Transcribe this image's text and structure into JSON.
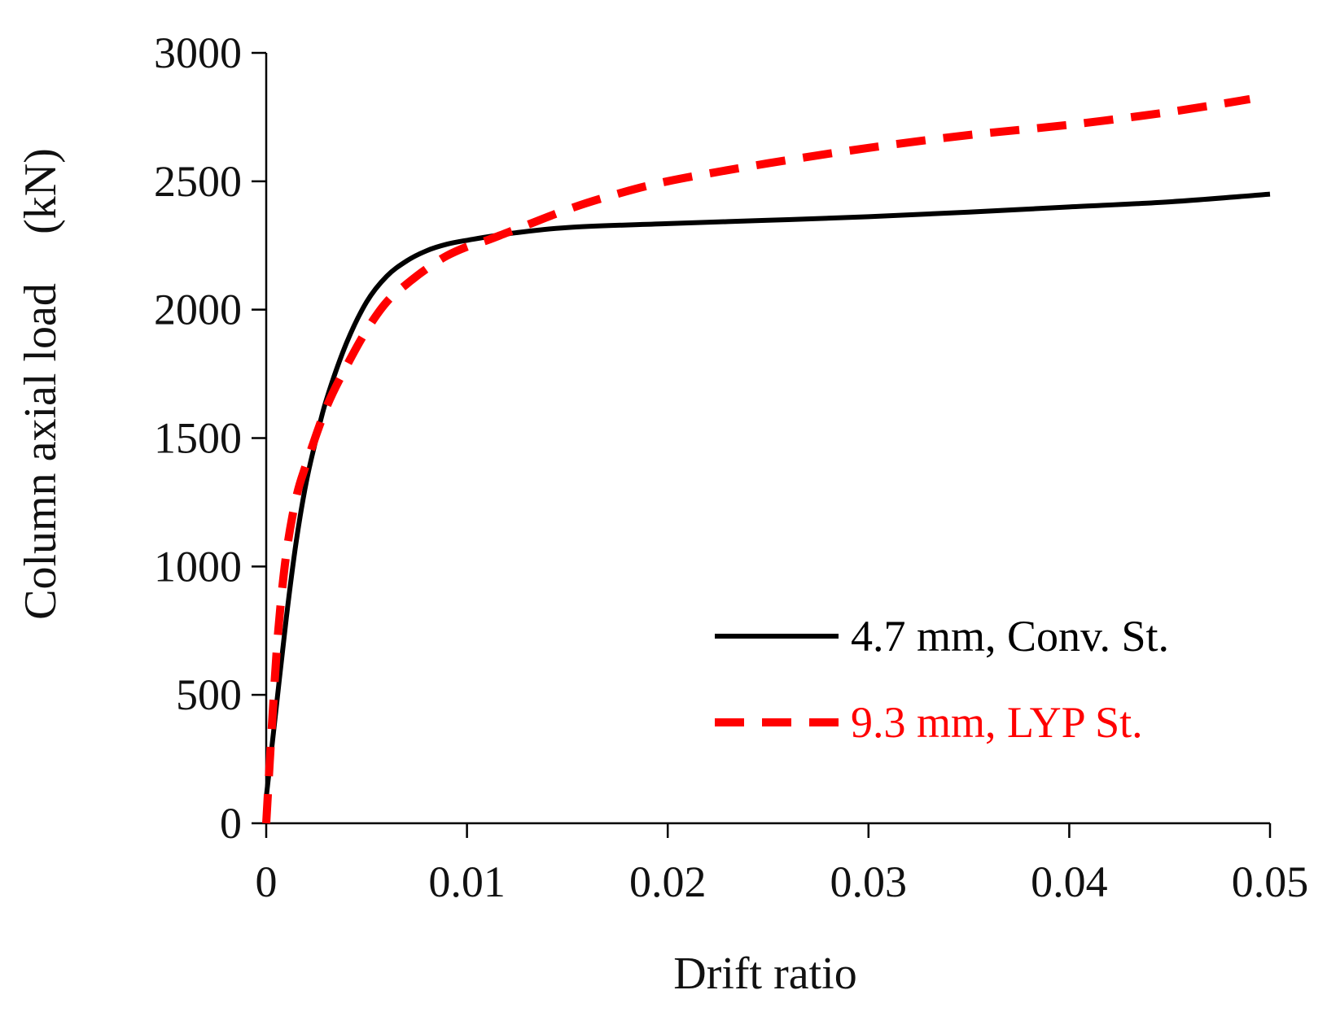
{
  "chart_data": {
    "type": "line",
    "title": "",
    "xlabel": "Drift ratio",
    "ylabel": "Column axial load",
    "ylabel_unit": "(kN)",
    "xlim": [
      0,
      0.05
    ],
    "ylim": [
      0,
      3000
    ],
    "xticks": [
      0,
      0.01,
      0.02,
      0.03,
      0.04,
      0.05
    ],
    "xtick_labels": [
      "0",
      "0.01",
      "0.02",
      "0.03",
      "0.04",
      "0.05"
    ],
    "yticks": [
      0,
      500,
      1000,
      1500,
      2000,
      2500,
      3000
    ],
    "ytick_labels": [
      "0",
      "500",
      "1000",
      "1500",
      "2000",
      "2500",
      "3000"
    ],
    "grid": false,
    "legend_position": "center-right",
    "series": [
      {
        "name": "4.7 mm, Conv. St.",
        "color": "#000000",
        "dash": "solid",
        "x": [
          0,
          0.0005,
          0.001,
          0.0015,
          0.002,
          0.0025,
          0.003,
          0.004,
          0.005,
          0.006,
          0.007,
          0.008,
          0.009,
          0.01,
          0.012,
          0.015,
          0.02,
          0.025,
          0.03,
          0.035,
          0.04,
          0.045,
          0.05
        ],
        "y": [
          100,
          450,
          800,
          1100,
          1330,
          1500,
          1650,
          1870,
          2030,
          2130,
          2190,
          2230,
          2255,
          2270,
          2295,
          2320,
          2335,
          2348,
          2362,
          2380,
          2400,
          2420,
          2450
        ]
      },
      {
        "name": "9.3 mm, LYP St.",
        "color": "#ff0000",
        "dash": "dashed",
        "x": [
          0,
          0.0003,
          0.0006,
          0.001,
          0.0015,
          0.002,
          0.003,
          0.004,
          0.005,
          0.006,
          0.007,
          0.008,
          0.009,
          0.01,
          0.011,
          0.012,
          0.013,
          0.015,
          0.017,
          0.02,
          0.025,
          0.03,
          0.035,
          0.04,
          0.045,
          0.049
        ],
        "y": [
          0,
          400,
          750,
          1050,
          1270,
          1400,
          1620,
          1780,
          1920,
          2030,
          2100,
          2160,
          2210,
          2245,
          2270,
          2300,
          2330,
          2390,
          2440,
          2500,
          2570,
          2630,
          2680,
          2720,
          2770,
          2820
        ]
      }
    ]
  }
}
